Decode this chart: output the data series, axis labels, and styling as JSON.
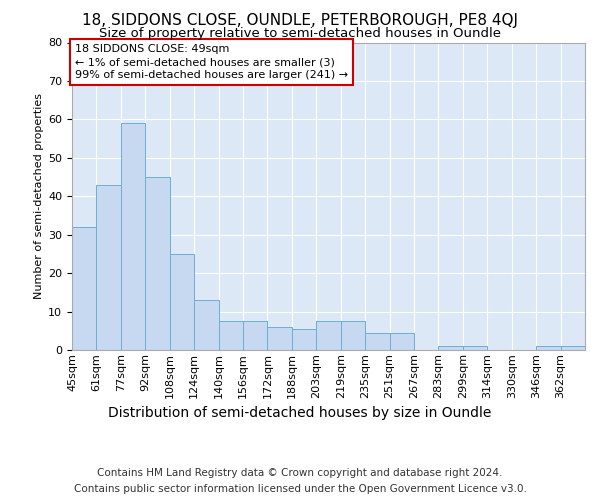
{
  "title1": "18, SIDDONS CLOSE, OUNDLE, PETERBOROUGH, PE8 4QJ",
  "title2": "Size of property relative to semi-detached houses in Oundle",
  "xlabel": "Distribution of semi-detached houses by size in Oundle",
  "ylabel": "Number of semi-detached properties",
  "footnote1": "Contains HM Land Registry data © Crown copyright and database right 2024.",
  "footnote2": "Contains public sector information licensed under the Open Government Licence v3.0.",
  "bin_labels": [
    "45sqm",
    "61sqm",
    "77sqm",
    "92sqm",
    "108sqm",
    "124sqm",
    "140sqm",
    "156sqm",
    "172sqm",
    "188sqm",
    "203sqm",
    "219sqm",
    "235sqm",
    "251sqm",
    "267sqm",
    "283sqm",
    "299sqm",
    "314sqm",
    "330sqm",
    "346sqm",
    "362sqm"
  ],
  "bar_values": [
    32,
    43,
    59,
    45,
    25,
    13,
    7.5,
    7.5,
    6,
    5.5,
    7.5,
    7.5,
    4.5,
    4.5,
    0,
    1,
    1,
    0,
    0,
    1,
    1
  ],
  "bar_color": "#c6d9f0",
  "bar_edge_color": "#6baed6",
  "background_color": "#dce8f5",
  "grid_color": "#ffffff",
  "annotation_line1": "18 SIDDONS CLOSE: 49sqm",
  "annotation_line2": "← 1% of semi-detached houses are smaller (3)",
  "annotation_line3": "99% of semi-detached houses are larger (241) →",
  "annotation_box_color": "#ffffff",
  "annotation_border_color": "#cc0000",
  "ylim": [
    0,
    80
  ],
  "yticks": [
    0,
    10,
    20,
    30,
    40,
    50,
    60,
    70,
    80
  ],
  "title1_fontsize": 11,
  "title2_fontsize": 9.5,
  "xlabel_fontsize": 10,
  "ylabel_fontsize": 8,
  "tick_fontsize": 8,
  "annot_fontsize": 8,
  "footnote_fontsize": 7.5
}
